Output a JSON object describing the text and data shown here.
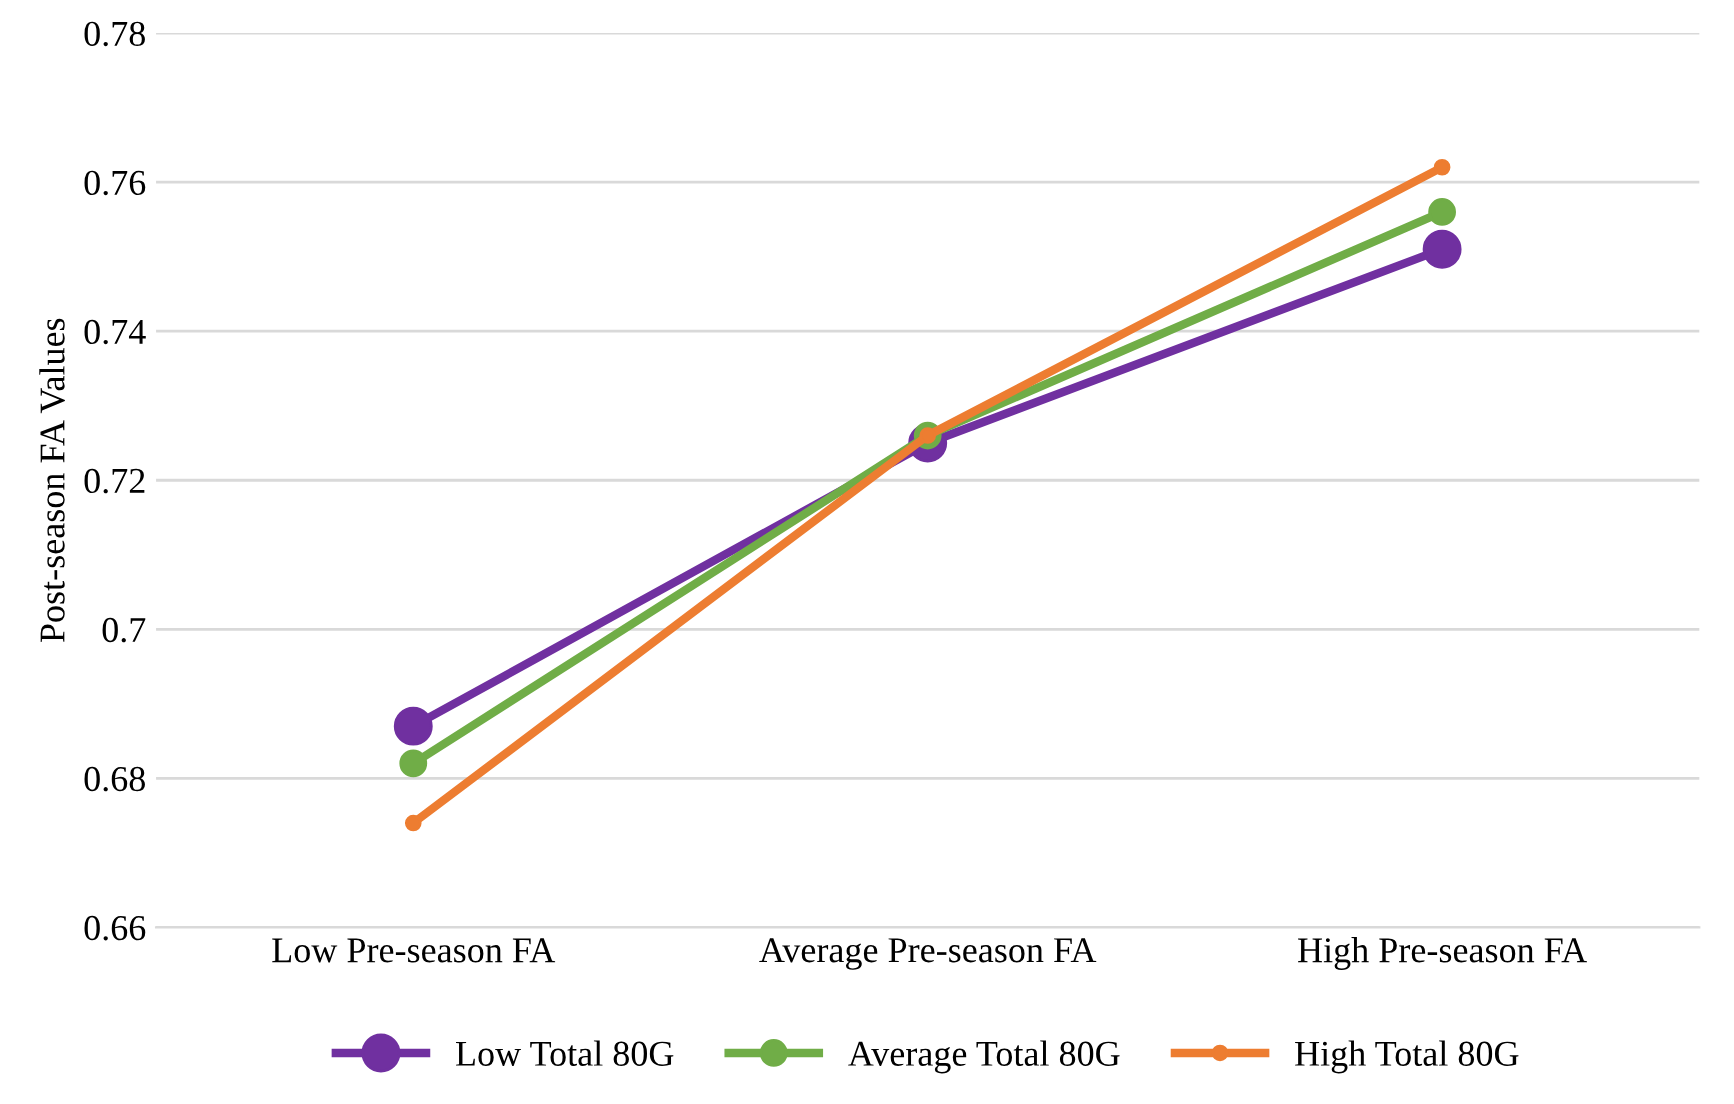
{
  "chart_data": {
    "type": "line",
    "ylabel": "Post-season FA Values",
    "categories": [
      "Low Pre-season FA",
      "Average Pre-season FA",
      "High Pre-season FA"
    ],
    "series": [
      {
        "name": "Low Total 80G",
        "color": "#7030a0",
        "values": [
          0.687,
          0.725,
          0.751
        ]
      },
      {
        "name": "Average Total 80G",
        "color": "#70ad47",
        "values": [
          0.682,
          0.726,
          0.756
        ]
      },
      {
        "name": "High Total 80G",
        "color": "#ed7d31",
        "values": [
          0.674,
          0.726,
          0.762
        ]
      }
    ],
    "ylim": [
      0.66,
      0.78
    ],
    "yticks": [
      0.66,
      0.68,
      0.7,
      0.72,
      0.74,
      0.76,
      0.78
    ],
    "grid": "y",
    "legend": "bottom",
    "marker": "circle",
    "line_style": "solid"
  }
}
